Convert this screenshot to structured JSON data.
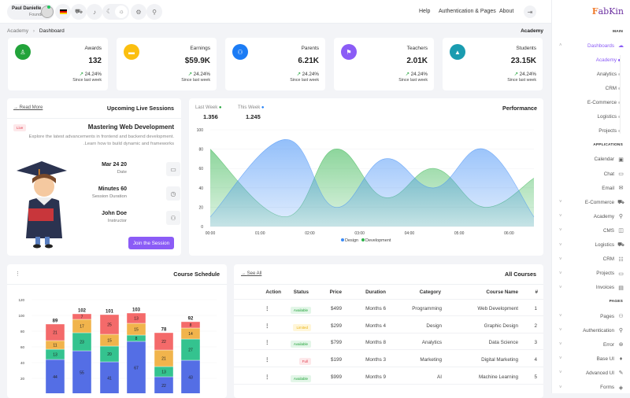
{
  "header": {
    "user_name": "Paul Danielle",
    "user_role": "Founder",
    "nav": [
      "Help",
      "Authentication & Pages",
      "About"
    ]
  },
  "breadcrumb": {
    "parent": "Academy",
    "current": "Dashboard",
    "page_label": "Academy"
  },
  "stats": [
    {
      "label": "Awards",
      "value": "132",
      "change": "24.24%",
      "since": "Since last week",
      "color": "#22a33a",
      "icon": "award-icon"
    },
    {
      "label": "Earnings",
      "value": "$59.9K",
      "change": "24.24%",
      "since": "Since last week",
      "color": "#fbbf0f",
      "icon": "wallet-icon"
    },
    {
      "label": "Parents",
      "value": "6.21K",
      "change": "24.24%",
      "since": "Since last week",
      "color": "#1c7cf5",
      "icon": "users-icon"
    },
    {
      "label": "Teachers",
      "value": "2.01K",
      "change": "24.24%",
      "since": "Since last week",
      "color": "#8b5cf6",
      "icon": "teacher-icon"
    },
    {
      "label": "Students",
      "value": "23.15K",
      "change": "24.24%",
      "since": "Since last week",
      "color": "#1a9cb0",
      "icon": "graduation-cap-icon"
    }
  ],
  "live": {
    "title": "Upcoming Live Sessions",
    "read_more": "Read More",
    "badge": "Live",
    "course": "Mastering Web Development",
    "desc1": "Explore the latest advancements in frontend and backend development.",
    "desc2": ".Learn how to build dynamic and frameworks",
    "date": "Mar 24 20",
    "date_label": "Date",
    "duration": "Minutes 60",
    "duration_label": "Session Duration",
    "instructor": "John Doe",
    "instructor_label": "Instructor",
    "join": "Join the Session",
    "accent": "#8b5cf6"
  },
  "performance": {
    "title": "Performance",
    "last_week_label": "Last Week",
    "last_week": "1.356",
    "this_week_label": "This Week",
    "this_week": "1.245"
  },
  "schedule": {
    "title": "Course Schedule"
  },
  "courses": {
    "title": "All Courses",
    "see_all": "See All",
    "columns": [
      "Action",
      "Status",
      "Price",
      "Duration",
      "Category",
      "Course Name",
      "#"
    ],
    "rows": [
      {
        "status": "Available",
        "price": "$499",
        "duration": "Months 6",
        "category": "Programming",
        "name": "Web Development",
        "n": "1"
      },
      {
        "status": "Limited",
        "price": "$299",
        "duration": "Months 4",
        "category": "Design",
        "name": "Graphic Design",
        "n": "2"
      },
      {
        "status": "Available",
        "price": "$799",
        "duration": "Months 8",
        "category": "Analytics",
        "name": "Data Science",
        "n": "3"
      },
      {
        "status": "Full",
        "price": "$199",
        "duration": "Months 3",
        "category": "Marketing",
        "name": "Digital Marketing",
        "n": "4"
      },
      {
        "status": "Available",
        "price": "$999",
        "duration": "Months 9",
        "category": "AI",
        "name": "Machine Learning",
        "n": "5"
      }
    ]
  },
  "sidebar": {
    "logo": "FabKin",
    "items": [
      {
        "type": "sec",
        "label": "MAIN"
      },
      {
        "label": "Dashboards",
        "icon": "☁",
        "chev": "^",
        "active": true
      },
      {
        "type": "sub",
        "label": "Academy",
        "active": true
      },
      {
        "type": "sub",
        "label": "Analytics"
      },
      {
        "type": "sub",
        "label": "CRM"
      },
      {
        "type": "sub",
        "label": "E-Commerce"
      },
      {
        "type": "sub",
        "label": "Logistics"
      },
      {
        "type": "sub",
        "label": "Projects"
      },
      {
        "type": "sec",
        "label": "APPLICATIONS"
      },
      {
        "label": "Calendar",
        "icon": "▣"
      },
      {
        "label": "Chat",
        "icon": "▭"
      },
      {
        "label": "Email",
        "icon": "✉"
      },
      {
        "label": "E-Commerce",
        "icon": "⛟",
        "chev": "v"
      },
      {
        "label": "Academy",
        "icon": "⚲",
        "chev": "v"
      },
      {
        "label": "CMS",
        "icon": "◫",
        "chev": "v"
      },
      {
        "label": "Logistics",
        "icon": "⛟",
        "chev": "v"
      },
      {
        "label": "CRM",
        "icon": "☷",
        "chev": "v"
      },
      {
        "label": "Projects",
        "icon": "▭",
        "chev": "v"
      },
      {
        "label": "Invoices",
        "icon": "▤",
        "chev": "v"
      },
      {
        "type": "sec",
        "label": "PAGES"
      },
      {
        "label": "Pages",
        "icon": "⚇",
        "chev": "v"
      },
      {
        "label": "Authentication",
        "icon": "⚲",
        "chev": "v"
      },
      {
        "label": "Error",
        "icon": "⊛",
        "chev": "v"
      },
      {
        "label": "Base UI",
        "icon": "♦",
        "chev": "v"
      },
      {
        "label": "Advanced UI",
        "icon": "✎",
        "chev": "v"
      },
      {
        "label": "Forms",
        "icon": "◈",
        "chev": "v"
      }
    ]
  },
  "chart_data": [
    {
      "type": "area",
      "title": "Performance",
      "x": [
        "00:00",
        "01:30",
        "02:30",
        "03:30",
        "04:30",
        "05:30",
        "06:30"
      ],
      "x_ticks": [
        "00:00",
        "01:00",
        "02:00",
        "03:00",
        "04:00",
        "05:00",
        "06:00"
      ],
      "series": [
        {
          "name": "Design",
          "values": [
            10,
            90,
            20,
            70,
            40,
            80,
            10
          ],
          "color": "#3b8bf6"
        },
        {
          "name": "Development",
          "values": [
            80,
            10,
            80,
            30,
            60,
            20,
            50
          ],
          "color": "#2fb34a"
        }
      ],
      "ylim": [
        0,
        100
      ],
      "y_ticks": [
        0,
        20,
        40,
        60,
        80,
        100
      ],
      "legend": "bottom",
      "grid": true
    },
    {
      "type": "bar",
      "stacked": true,
      "title": "Course Schedule",
      "ylim": [
        0,
        120
      ],
      "y_ticks": [
        20,
        40,
        60,
        80,
        100,
        120
      ],
      "totals": [
        89,
        102,
        101,
        103,
        78,
        92
      ],
      "series": [
        {
          "values": [
            44,
            55,
            41,
            67,
            22,
            43
          ],
          "color": "#546ee5"
        },
        {
          "values": [
            13,
            23,
            20,
            8,
            13,
            27
          ],
          "color": "#34c38f"
        },
        {
          "values": [
            11,
            17,
            15,
            15,
            21,
            14
          ],
          "color": "#f1b44c"
        },
        {
          "values": [
            21,
            7,
            25,
            13,
            22,
            8
          ],
          "color": "#f46a6a"
        }
      ]
    }
  ]
}
